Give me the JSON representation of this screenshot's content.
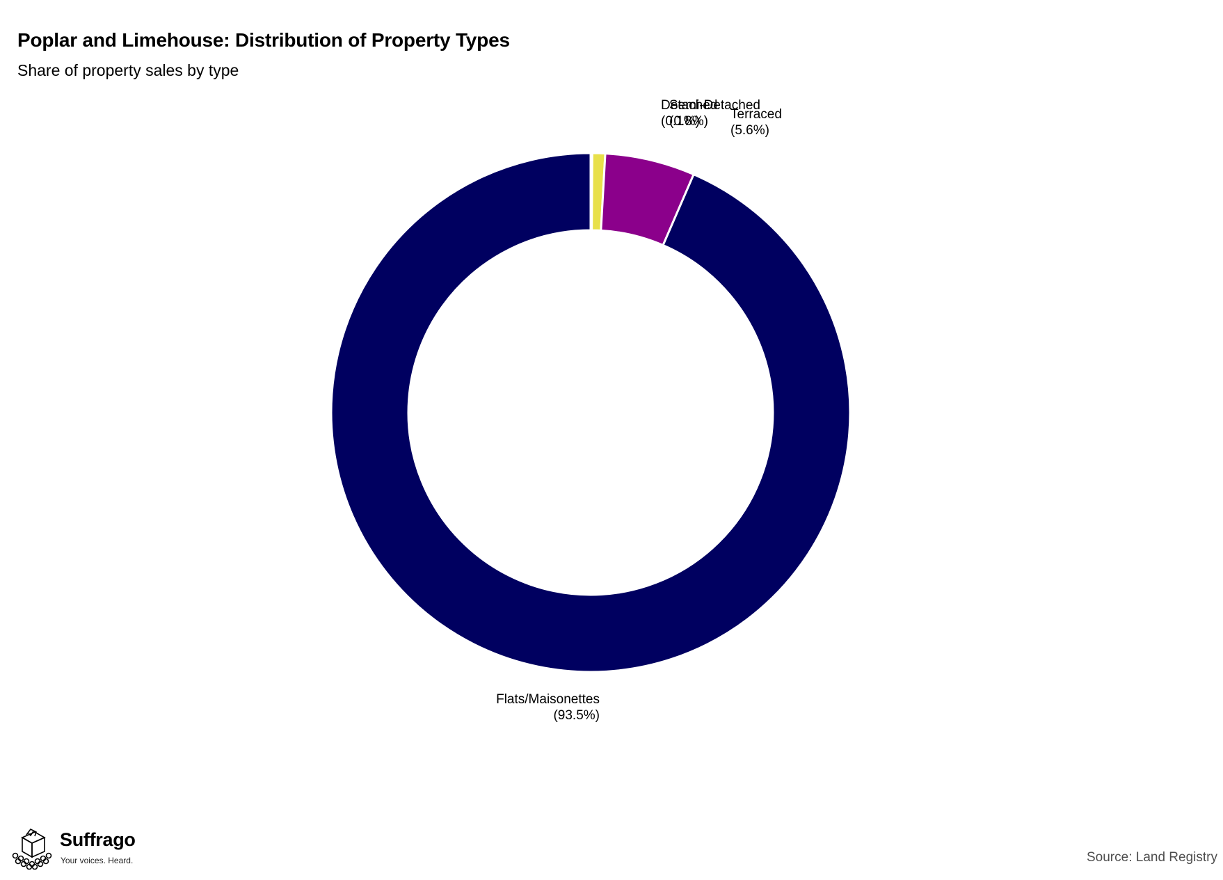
{
  "chart_data": {
    "type": "pie",
    "variant": "donut",
    "title": "Poplar and Limehouse: Distribution of Property Types",
    "subtitle": "Share of property sales by type",
    "slices": [
      {
        "name": "Detached",
        "value": 0.1,
        "label": "(0.1%)",
        "color": "#fde725"
      },
      {
        "name": "Semi-Detached",
        "value": 0.8,
        "label": "(0.8%)",
        "color": "#e8e04a"
      },
      {
        "name": "Terraced",
        "value": 5.6,
        "label": "(5.6%)",
        "color": "#8b008b"
      },
      {
        "name": "Flats/Maisonettes",
        "value": 93.5,
        "label": "(93.5%)",
        "color": "#000060"
      }
    ],
    "legend": "none",
    "source": "Source: Land Registry"
  },
  "branding": {
    "name": "Suffrago",
    "tagline": "Your voices. Heard."
  }
}
